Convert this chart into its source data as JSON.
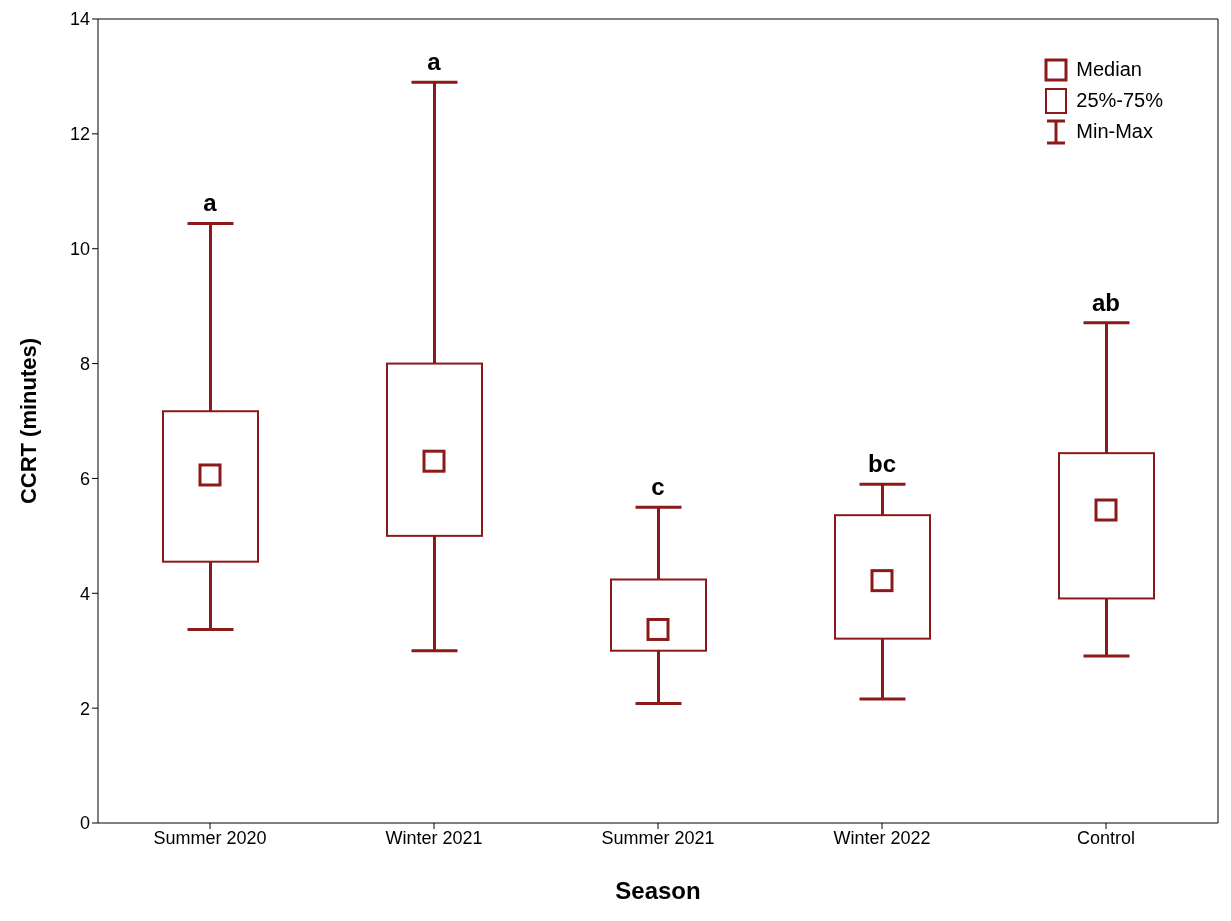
{
  "chart_data": {
    "type": "box",
    "xlabel": "Season",
    "ylabel": "CCRT (minutes)",
    "categories": [
      "Summer 2020",
      "Winter 2021",
      "Summer 2021",
      "Winter 2022",
      "Control"
    ],
    "color": "#8b1a1a",
    "boxes": [
      {
        "low": 3.37,
        "q1": 4.55,
        "median": 6.06,
        "q3": 7.17,
        "high": 10.44
      },
      {
        "low": 3.0,
        "q1": 5.0,
        "median": 6.3,
        "q3": 8.0,
        "high": 12.9
      },
      {
        "low": 2.08,
        "q1": 3.0,
        "median": 3.37,
        "q3": 4.24,
        "high": 5.5
      },
      {
        "low": 2.16,
        "q1": 3.21,
        "median": 4.22,
        "q3": 5.36,
        "high": 5.9
      },
      {
        "low": 2.91,
        "q1": 3.91,
        "median": 5.45,
        "q3": 6.44,
        "high": 8.71
      }
    ],
    "ylim": [
      0,
      14
    ],
    "yticks": [
      0,
      2,
      4,
      6,
      8,
      10,
      12,
      14
    ],
    "grid": false,
    "marker": "square",
    "annotations": [
      {
        "text": "a",
        "x": "Summer 2020",
        "y": 10.44
      },
      {
        "text": "a",
        "x": "Winter 2021",
        "y": 12.9
      },
      {
        "text": "c",
        "x": "Summer 2021",
        "y": 5.5
      },
      {
        "text": "bc",
        "x": "Winter 2022",
        "y": 5.9
      },
      {
        "text": "ab",
        "x": "Control",
        "y": 8.71
      },
      "Median",
      "25%-75%",
      "Min-Max"
    ]
  }
}
